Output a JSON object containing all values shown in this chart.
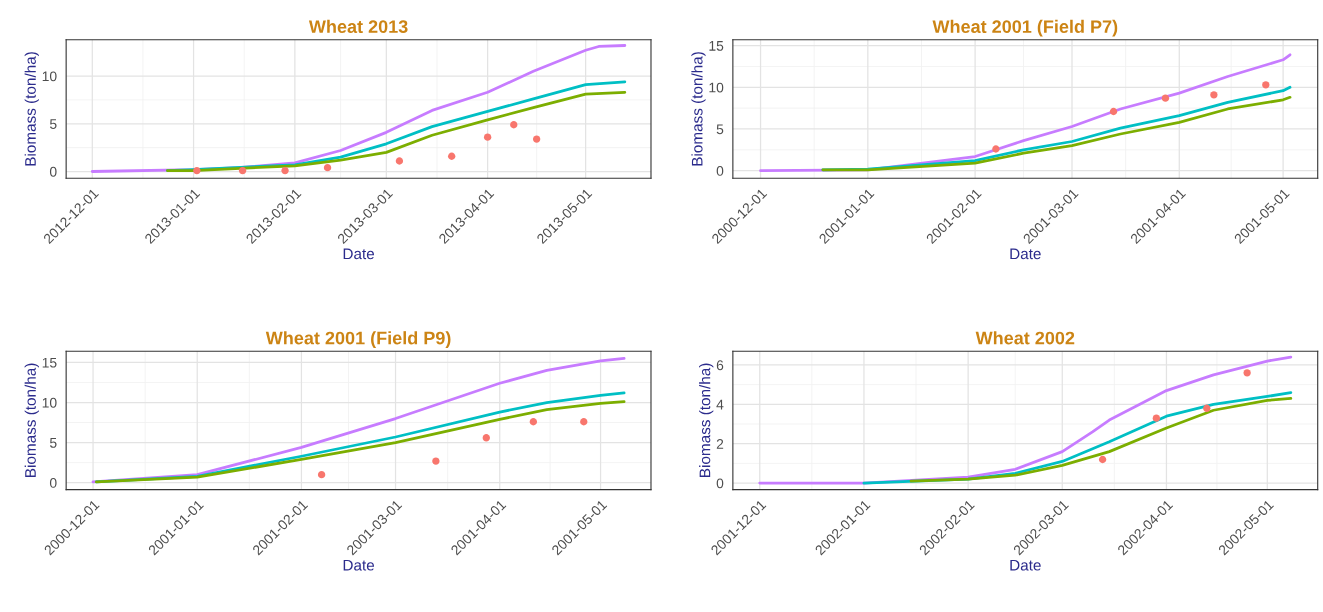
{
  "chart_data": [
    {
      "type": "line",
      "title": "Wheat 2013",
      "xlabel": "Date",
      "ylabel": "Biomass (ton/ha)",
      "grid": true,
      "legend": false,
      "xlim": [
        "2012-11-23",
        "2013-05-21"
      ],
      "ylim": [
        -0.7,
        13.8
      ],
      "yticks": [
        0,
        5,
        10
      ],
      "xticks": [
        {
          "value": "2012-12-01",
          "label": "2012-12-01"
        },
        {
          "value": "2013-01-01",
          "label": "2013-01-01"
        },
        {
          "value": "2013-02-01",
          "label": "2013-02-01"
        },
        {
          "value": "2013-03-01",
          "label": "2013-03-01"
        },
        {
          "value": "2013-04-01",
          "label": "2013-04-01"
        },
        {
          "value": "2013-05-01",
          "label": "2013-05-01"
        }
      ],
      "series": [
        {
          "type": "line",
          "color": "#c77cff",
          "x": [
            "2012-12-01",
            "2013-01-01",
            "2013-01-15",
            "2013-02-01",
            "2013-02-15",
            "2013-03-01",
            "2013-03-15",
            "2013-04-01",
            "2013-04-15",
            "2013-05-01",
            "2013-05-05",
            "2013-05-13"
          ],
          "values": [
            0,
            0.2,
            0.4,
            0.9,
            2.2,
            4.1,
            6.4,
            8.3,
            10.5,
            12.7,
            13.1,
            13.2
          ]
        },
        {
          "type": "line",
          "color": "#00bfc4",
          "x": [
            "2012-12-24",
            "2013-01-01",
            "2013-02-01",
            "2013-02-15",
            "2013-03-01",
            "2013-03-15",
            "2013-04-01",
            "2013-04-15",
            "2013-05-01",
            "2013-05-13"
          ],
          "values": [
            0.1,
            0.2,
            0.7,
            1.5,
            2.9,
            4.7,
            6.3,
            7.6,
            9.1,
            9.4
          ]
        },
        {
          "type": "line",
          "color": "#7cae00",
          "x": [
            "2012-12-24",
            "2013-01-01",
            "2013-02-01",
            "2013-02-15",
            "2013-03-01",
            "2013-03-15",
            "2013-04-01",
            "2013-04-15",
            "2013-05-01",
            "2013-05-13"
          ],
          "values": [
            0.1,
            0.1,
            0.6,
            1.2,
            2.0,
            3.8,
            5.4,
            6.7,
            8.1,
            8.3
          ]
        },
        {
          "type": "scatter",
          "marker": "circle",
          "color": "#f8766d",
          "x": [
            "2013-01-02",
            "2013-01-16",
            "2013-01-29",
            "2013-02-11",
            "2013-03-05",
            "2013-03-21",
            "2013-04-01",
            "2013-04-09",
            "2013-04-16"
          ],
          "values": [
            0.1,
            0.1,
            0.1,
            0.4,
            1.1,
            1.6,
            3.6,
            4.9,
            3.4
          ]
        }
      ]
    },
    {
      "type": "line",
      "title": "Wheat 2001 (Field P7)",
      "xlabel": "Date",
      "ylabel": "Biomass (ton/ha)",
      "grid": true,
      "legend": false,
      "xlim": [
        "2000-11-23",
        "2001-05-11"
      ],
      "ylim": [
        -0.9,
        15.7
      ],
      "yticks": [
        0,
        5,
        10,
        15
      ],
      "xticks": [
        {
          "value": "2000-12-01",
          "label": "2000-12-01"
        },
        {
          "value": "2001-01-01",
          "label": "2001-01-01"
        },
        {
          "value": "2001-02-01",
          "label": "2001-02-01"
        },
        {
          "value": "2001-03-01",
          "label": "2001-03-01"
        },
        {
          "value": "2001-04-01",
          "label": "2001-04-01"
        },
        {
          "value": "2001-05-01",
          "label": "2001-05-01"
        }
      ],
      "series": [
        {
          "type": "line",
          "color": "#c77cff",
          "x": [
            "2000-12-01",
            "2001-01-01",
            "2001-02-01",
            "2001-02-15",
            "2001-03-01",
            "2001-03-15",
            "2001-04-01",
            "2001-04-15",
            "2001-05-01",
            "2001-05-03"
          ],
          "values": [
            0,
            0.1,
            1.7,
            3.6,
            5.3,
            7.4,
            9.3,
            11.3,
            13.3,
            13.9
          ]
        },
        {
          "type": "line",
          "color": "#00bfc4",
          "x": [
            "2000-12-19",
            "2001-01-01",
            "2001-02-01",
            "2001-02-15",
            "2001-03-01",
            "2001-03-15",
            "2001-04-01",
            "2001-04-15",
            "2001-05-01",
            "2001-05-03"
          ],
          "values": [
            0.1,
            0.2,
            1.2,
            2.5,
            3.5,
            5.1,
            6.6,
            8.2,
            9.6,
            10.0
          ]
        },
        {
          "type": "line",
          "color": "#7cae00",
          "x": [
            "2000-12-19",
            "2001-01-01",
            "2001-02-01",
            "2001-02-15",
            "2001-03-01",
            "2001-03-15",
            "2001-04-01",
            "2001-04-15",
            "2001-05-01",
            "2001-05-03"
          ],
          "values": [
            0.1,
            0.1,
            0.9,
            2.1,
            3.0,
            4.4,
            5.8,
            7.4,
            8.5,
            8.8
          ]
        },
        {
          "type": "scatter",
          "marker": "circle",
          "color": "#f8766d",
          "x": [
            "2001-02-07",
            "2001-03-13",
            "2001-03-28",
            "2001-04-11",
            "2001-04-26"
          ],
          "values": [
            2.6,
            7.1,
            8.7,
            9.1,
            10.3
          ]
        }
      ]
    },
    {
      "type": "line",
      "title": "Wheat 2001 (Field P9)",
      "xlabel": "Date",
      "ylabel": "Biomass (ton/ha)",
      "grid": true,
      "legend": false,
      "xlim": [
        "2000-11-23",
        "2001-05-16"
      ],
      "ylim": [
        -0.86,
        16.4
      ],
      "yticks": [
        0,
        5,
        10,
        15
      ],
      "xticks": [
        {
          "value": "2000-12-01",
          "label": "2000-12-01"
        },
        {
          "value": "2001-01-01",
          "label": "2001-01-01"
        },
        {
          "value": "2001-02-01",
          "label": "2001-02-01"
        },
        {
          "value": "2001-03-01",
          "label": "2001-03-01"
        },
        {
          "value": "2001-04-01",
          "label": "2001-04-01"
        },
        {
          "value": "2001-05-01",
          "label": "2001-05-01"
        }
      ],
      "series": [
        {
          "type": "line",
          "color": "#c77cff",
          "x": [
            "2000-12-01",
            "2001-01-01",
            "2001-02-01",
            "2001-03-01",
            "2001-04-01",
            "2001-04-15",
            "2001-05-01",
            "2001-05-08"
          ],
          "values": [
            0.1,
            1.0,
            4.4,
            8.0,
            12.4,
            14.0,
            15.2,
            15.5
          ]
        },
        {
          "type": "line",
          "color": "#00bfc4",
          "x": [
            "2000-12-02",
            "2001-01-01",
            "2001-02-01",
            "2001-03-01",
            "2001-04-01",
            "2001-04-15",
            "2001-05-01",
            "2001-05-08"
          ],
          "values": [
            0.1,
            0.8,
            3.3,
            5.7,
            8.8,
            10.0,
            10.9,
            11.2
          ]
        },
        {
          "type": "line",
          "color": "#7cae00",
          "x": [
            "2000-12-02",
            "2001-01-01",
            "2001-02-01",
            "2001-03-01",
            "2001-04-01",
            "2001-04-15",
            "2001-05-01",
            "2001-05-08"
          ],
          "values": [
            0.1,
            0.7,
            2.9,
            5.0,
            7.9,
            9.1,
            9.9,
            10.1
          ]
        },
        {
          "type": "scatter",
          "marker": "circle",
          "color": "#f8766d",
          "x": [
            "2001-02-07",
            "2001-03-13",
            "2001-03-28",
            "2001-04-11",
            "2001-04-26"
          ],
          "values": [
            1.0,
            2.7,
            5.6,
            7.6,
            7.6
          ]
        }
      ]
    },
    {
      "type": "line",
      "title": "Wheat 2002",
      "xlabel": "Date",
      "ylabel": "Biomass (ton/ha)",
      "grid": true,
      "legend": false,
      "xlim": [
        "2001-11-23",
        "2002-05-16"
      ],
      "ylim": [
        -0.33,
        6.7
      ],
      "yticks": [
        0,
        2,
        4,
        6
      ],
      "xticks": [
        {
          "value": "2001-12-01",
          "label": "2001-12-01"
        },
        {
          "value": "2002-01-01",
          "label": "2002-01-01"
        },
        {
          "value": "2002-02-01",
          "label": "2002-02-01"
        },
        {
          "value": "2002-03-01",
          "label": "2002-03-01"
        },
        {
          "value": "2002-04-01",
          "label": "2002-04-01"
        },
        {
          "value": "2002-05-01",
          "label": "2002-05-01"
        }
      ],
      "series": [
        {
          "type": "line",
          "color": "#c77cff",
          "x": [
            "2001-12-01",
            "2002-01-01",
            "2002-02-01",
            "2002-02-15",
            "2002-03-01",
            "2002-03-10",
            "2002-03-15",
            "2002-04-01",
            "2002-04-15",
            "2002-05-01",
            "2002-05-08"
          ],
          "values": [
            0,
            0,
            0.3,
            0.7,
            1.6,
            2.6,
            3.2,
            4.7,
            5.5,
            6.2,
            6.4
          ]
        },
        {
          "type": "line",
          "color": "#00bfc4",
          "x": [
            "2002-01-01",
            "2002-02-01",
            "2002-02-15",
            "2002-03-01",
            "2002-03-15",
            "2002-04-01",
            "2002-04-15",
            "2002-05-01",
            "2002-05-08"
          ],
          "values": [
            0,
            0.2,
            0.5,
            1.1,
            2.1,
            3.4,
            4.0,
            4.4,
            4.6
          ]
        },
        {
          "type": "line",
          "color": "#7cae00",
          "x": [
            "2002-01-15",
            "2002-02-01",
            "2002-02-15",
            "2002-03-01",
            "2002-03-15",
            "2002-04-01",
            "2002-04-15",
            "2002-05-01",
            "2002-05-08"
          ],
          "values": [
            0.1,
            0.2,
            0.4,
            0.9,
            1.6,
            2.8,
            3.7,
            4.2,
            4.3
          ]
        },
        {
          "type": "scatter",
          "marker": "circle",
          "color": "#f8766d",
          "x": [
            "2002-03-13",
            "2002-03-29",
            "2002-04-13",
            "2002-04-25"
          ],
          "values": [
            1.2,
            3.3,
            3.8,
            5.6
          ]
        }
      ]
    }
  ]
}
